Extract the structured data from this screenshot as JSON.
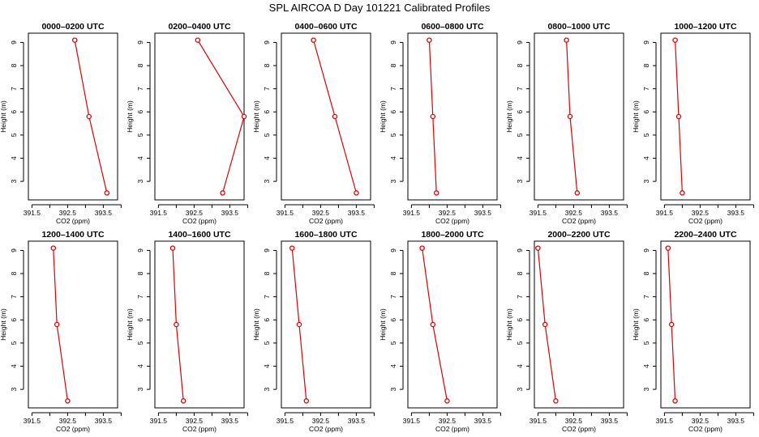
{
  "title": "SPL AIRCOA D  Day 101221  Calibrated Profiles",
  "colors": {
    "series": "#dd0000",
    "axis": "#000000",
    "background": "#ffffff"
  },
  "chart_data": [
    {
      "type": "line",
      "title": "0000–0200 UTC",
      "xlabel": "CO2 (ppm)",
      "ylabel": "Height (m)",
      "xlim": [
        391.4,
        393.9
      ],
      "ylim": [
        2.2,
        9.4
      ],
      "x_ticks": [
        391.5,
        392.0,
        392.5,
        393.0,
        393.5,
        394.0
      ],
      "x_tick_labels": [
        "391.5",
        "",
        "392.5",
        "",
        "393.5",
        ""
      ],
      "y_ticks": [
        3,
        4,
        5,
        6,
        7,
        8,
        9
      ],
      "series": [
        {
          "name": "CO2",
          "x": [
            392.7,
            393.1,
            393.6
          ],
          "y": [
            9.1,
            5.8,
            2.5
          ]
        }
      ]
    },
    {
      "type": "line",
      "title": "0200–0400 UTC",
      "xlabel": "CO2 (ppm)",
      "ylabel": "Height (m)",
      "xlim": [
        391.4,
        393.9
      ],
      "ylim": [
        2.2,
        9.4
      ],
      "x_ticks": [
        391.5,
        392.0,
        392.5,
        393.0,
        393.5,
        394.0
      ],
      "x_tick_labels": [
        "391.5",
        "",
        "392.5",
        "",
        "393.5",
        ""
      ],
      "y_ticks": [
        3,
        4,
        5,
        6,
        7,
        8,
        9
      ],
      "series": [
        {
          "name": "CO2",
          "x": [
            392.6,
            393.9,
            393.3
          ],
          "y": [
            9.1,
            5.8,
            2.5
          ]
        }
      ]
    },
    {
      "type": "line",
      "title": "0400–0600 UTC",
      "xlabel": "CO2 (ppm)",
      "ylabel": "Height (m)",
      "xlim": [
        391.4,
        393.9
      ],
      "ylim": [
        2.2,
        9.4
      ],
      "x_ticks": [
        391.5,
        392.0,
        392.5,
        393.0,
        393.5,
        394.0
      ],
      "x_tick_labels": [
        "391.5",
        "",
        "392.5",
        "",
        "393.5",
        ""
      ],
      "y_ticks": [
        3,
        4,
        5,
        6,
        7,
        8,
        9
      ],
      "series": [
        {
          "name": "CO2",
          "x": [
            392.3,
            392.9,
            393.5
          ],
          "y": [
            9.1,
            5.8,
            2.5
          ]
        }
      ]
    },
    {
      "type": "line",
      "title": "0600–0800 UTC",
      "xlabel": "CO2 (ppm)",
      "ylabel": "Height (m)",
      "xlim": [
        391.4,
        393.9
      ],
      "ylim": [
        2.2,
        9.4
      ],
      "x_ticks": [
        391.5,
        392.0,
        392.5,
        393.0,
        393.5,
        394.0
      ],
      "x_tick_labels": [
        "391.5",
        "",
        "392.5",
        "",
        "393.5",
        ""
      ],
      "y_ticks": [
        3,
        4,
        5,
        6,
        7,
        8,
        9
      ],
      "series": [
        {
          "name": "CO2",
          "x": [
            392.0,
            392.1,
            392.2
          ],
          "y": [
            9.1,
            5.8,
            2.5
          ]
        }
      ]
    },
    {
      "type": "line",
      "title": "0800–1000 UTC",
      "xlabel": "CO2 (ppm)",
      "ylabel": "Height (m)",
      "xlim": [
        391.4,
        393.9
      ],
      "ylim": [
        2.2,
        9.4
      ],
      "x_ticks": [
        391.5,
        392.0,
        392.5,
        393.0,
        393.5,
        394.0
      ],
      "x_tick_labels": [
        "391.5",
        "",
        "392.5",
        "",
        "393.5",
        ""
      ],
      "y_ticks": [
        3,
        4,
        5,
        6,
        7,
        8,
        9
      ],
      "series": [
        {
          "name": "CO2",
          "x": [
            392.3,
            392.4,
            392.6
          ],
          "y": [
            9.1,
            5.8,
            2.5
          ]
        }
      ]
    },
    {
      "type": "line",
      "title": "1000–1200 UTC",
      "xlabel": "CO2 (ppm)",
      "ylabel": "Height (m)",
      "xlim": [
        391.4,
        393.9
      ],
      "ylim": [
        2.2,
        9.4
      ],
      "x_ticks": [
        391.5,
        392.0,
        392.5,
        393.0,
        393.5,
        394.0
      ],
      "x_tick_labels": [
        "391.5",
        "",
        "392.5",
        "",
        "393.5",
        ""
      ],
      "y_ticks": [
        3,
        4,
        5,
        6,
        7,
        8,
        9
      ],
      "series": [
        {
          "name": "CO2",
          "x": [
            391.8,
            391.9,
            392.0
          ],
          "y": [
            9.1,
            5.8,
            2.5
          ]
        }
      ]
    },
    {
      "type": "line",
      "title": "1200–1400 UTC",
      "xlabel": "CO2 (ppm)",
      "ylabel": "Height (m)",
      "xlim": [
        391.4,
        393.9
      ],
      "ylim": [
        2.2,
        9.4
      ],
      "x_ticks": [
        391.5,
        392.0,
        392.5,
        393.0,
        393.5,
        394.0
      ],
      "x_tick_labels": [
        "391.5",
        "",
        "392.5",
        "",
        "393.5",
        ""
      ],
      "y_ticks": [
        3,
        4,
        5,
        6,
        7,
        8,
        9
      ],
      "series": [
        {
          "name": "CO2",
          "x": [
            392.1,
            392.2,
            392.5
          ],
          "y": [
            9.1,
            5.8,
            2.5
          ]
        }
      ]
    },
    {
      "type": "line",
      "title": "1400–1600 UTC",
      "xlabel": "CO2 (ppm)",
      "ylabel": "Height (m)",
      "xlim": [
        391.4,
        393.9
      ],
      "ylim": [
        2.2,
        9.4
      ],
      "x_ticks": [
        391.5,
        392.0,
        392.5,
        393.0,
        393.5,
        394.0
      ],
      "x_tick_labels": [
        "391.5",
        "",
        "392.5",
        "",
        "393.5",
        ""
      ],
      "y_ticks": [
        3,
        4,
        5,
        6,
        7,
        8,
        9
      ],
      "series": [
        {
          "name": "CO2",
          "x": [
            391.9,
            392.0,
            392.2
          ],
          "y": [
            9.1,
            5.8,
            2.5
          ]
        }
      ]
    },
    {
      "type": "line",
      "title": "1600–1800 UTC",
      "xlabel": "CO2 (ppm)",
      "ylabel": "Height (m)",
      "xlim": [
        391.4,
        393.9
      ],
      "ylim": [
        2.2,
        9.4
      ],
      "x_ticks": [
        391.5,
        392.0,
        392.5,
        393.0,
        393.5,
        394.0
      ],
      "x_tick_labels": [
        "391.5",
        "",
        "392.5",
        "",
        "393.5",
        ""
      ],
      "y_ticks": [
        3,
        4,
        5,
        6,
        7,
        8,
        9
      ],
      "series": [
        {
          "name": "CO2",
          "x": [
            391.7,
            391.9,
            392.1
          ],
          "y": [
            9.1,
            5.8,
            2.5
          ]
        }
      ]
    },
    {
      "type": "line",
      "title": "1800–2000 UTC",
      "xlabel": "CO2 (ppm)",
      "ylabel": "Height (m)",
      "xlim": [
        391.4,
        393.9
      ],
      "ylim": [
        2.2,
        9.4
      ],
      "x_ticks": [
        391.5,
        392.0,
        392.5,
        393.0,
        393.5,
        394.0
      ],
      "x_tick_labels": [
        "391.5",
        "",
        "392.5",
        "",
        "393.5",
        ""
      ],
      "y_ticks": [
        3,
        4,
        5,
        6,
        7,
        8,
        9
      ],
      "series": [
        {
          "name": "CO2",
          "x": [
            391.8,
            392.1,
            392.5
          ],
          "y": [
            9.1,
            5.8,
            2.5
          ]
        }
      ]
    },
    {
      "type": "line",
      "title": "2000–2200 UTC",
      "xlabel": "CO2 (ppm)",
      "ylabel": "Height (m)",
      "xlim": [
        391.4,
        393.9
      ],
      "ylim": [
        2.2,
        9.4
      ],
      "x_ticks": [
        391.5,
        392.0,
        392.5,
        393.0,
        393.5,
        394.0
      ],
      "x_tick_labels": [
        "391.5",
        "",
        "392.5",
        "",
        "393.5",
        ""
      ],
      "y_ticks": [
        3,
        4,
        5,
        6,
        7,
        8,
        9
      ],
      "series": [
        {
          "name": "CO2",
          "x": [
            391.5,
            391.7,
            392.0
          ],
          "y": [
            9.1,
            5.8,
            2.5
          ]
        }
      ]
    },
    {
      "type": "line",
      "title": "2200–2400 UTC",
      "xlabel": "CO2 (ppm)",
      "ylabel": "Height (m)",
      "xlim": [
        391.4,
        393.9
      ],
      "ylim": [
        2.2,
        9.4
      ],
      "x_ticks": [
        391.5,
        392.0,
        392.5,
        393.0,
        393.5,
        394.0
      ],
      "x_tick_labels": [
        "391.5",
        "",
        "392.5",
        "",
        "393.5",
        ""
      ],
      "y_ticks": [
        3,
        4,
        5,
        6,
        7,
        8,
        9
      ],
      "series": [
        {
          "name": "CO2",
          "x": [
            391.6,
            391.7,
            391.8
          ],
          "y": [
            9.1,
            5.8,
            2.5
          ]
        }
      ]
    }
  ]
}
